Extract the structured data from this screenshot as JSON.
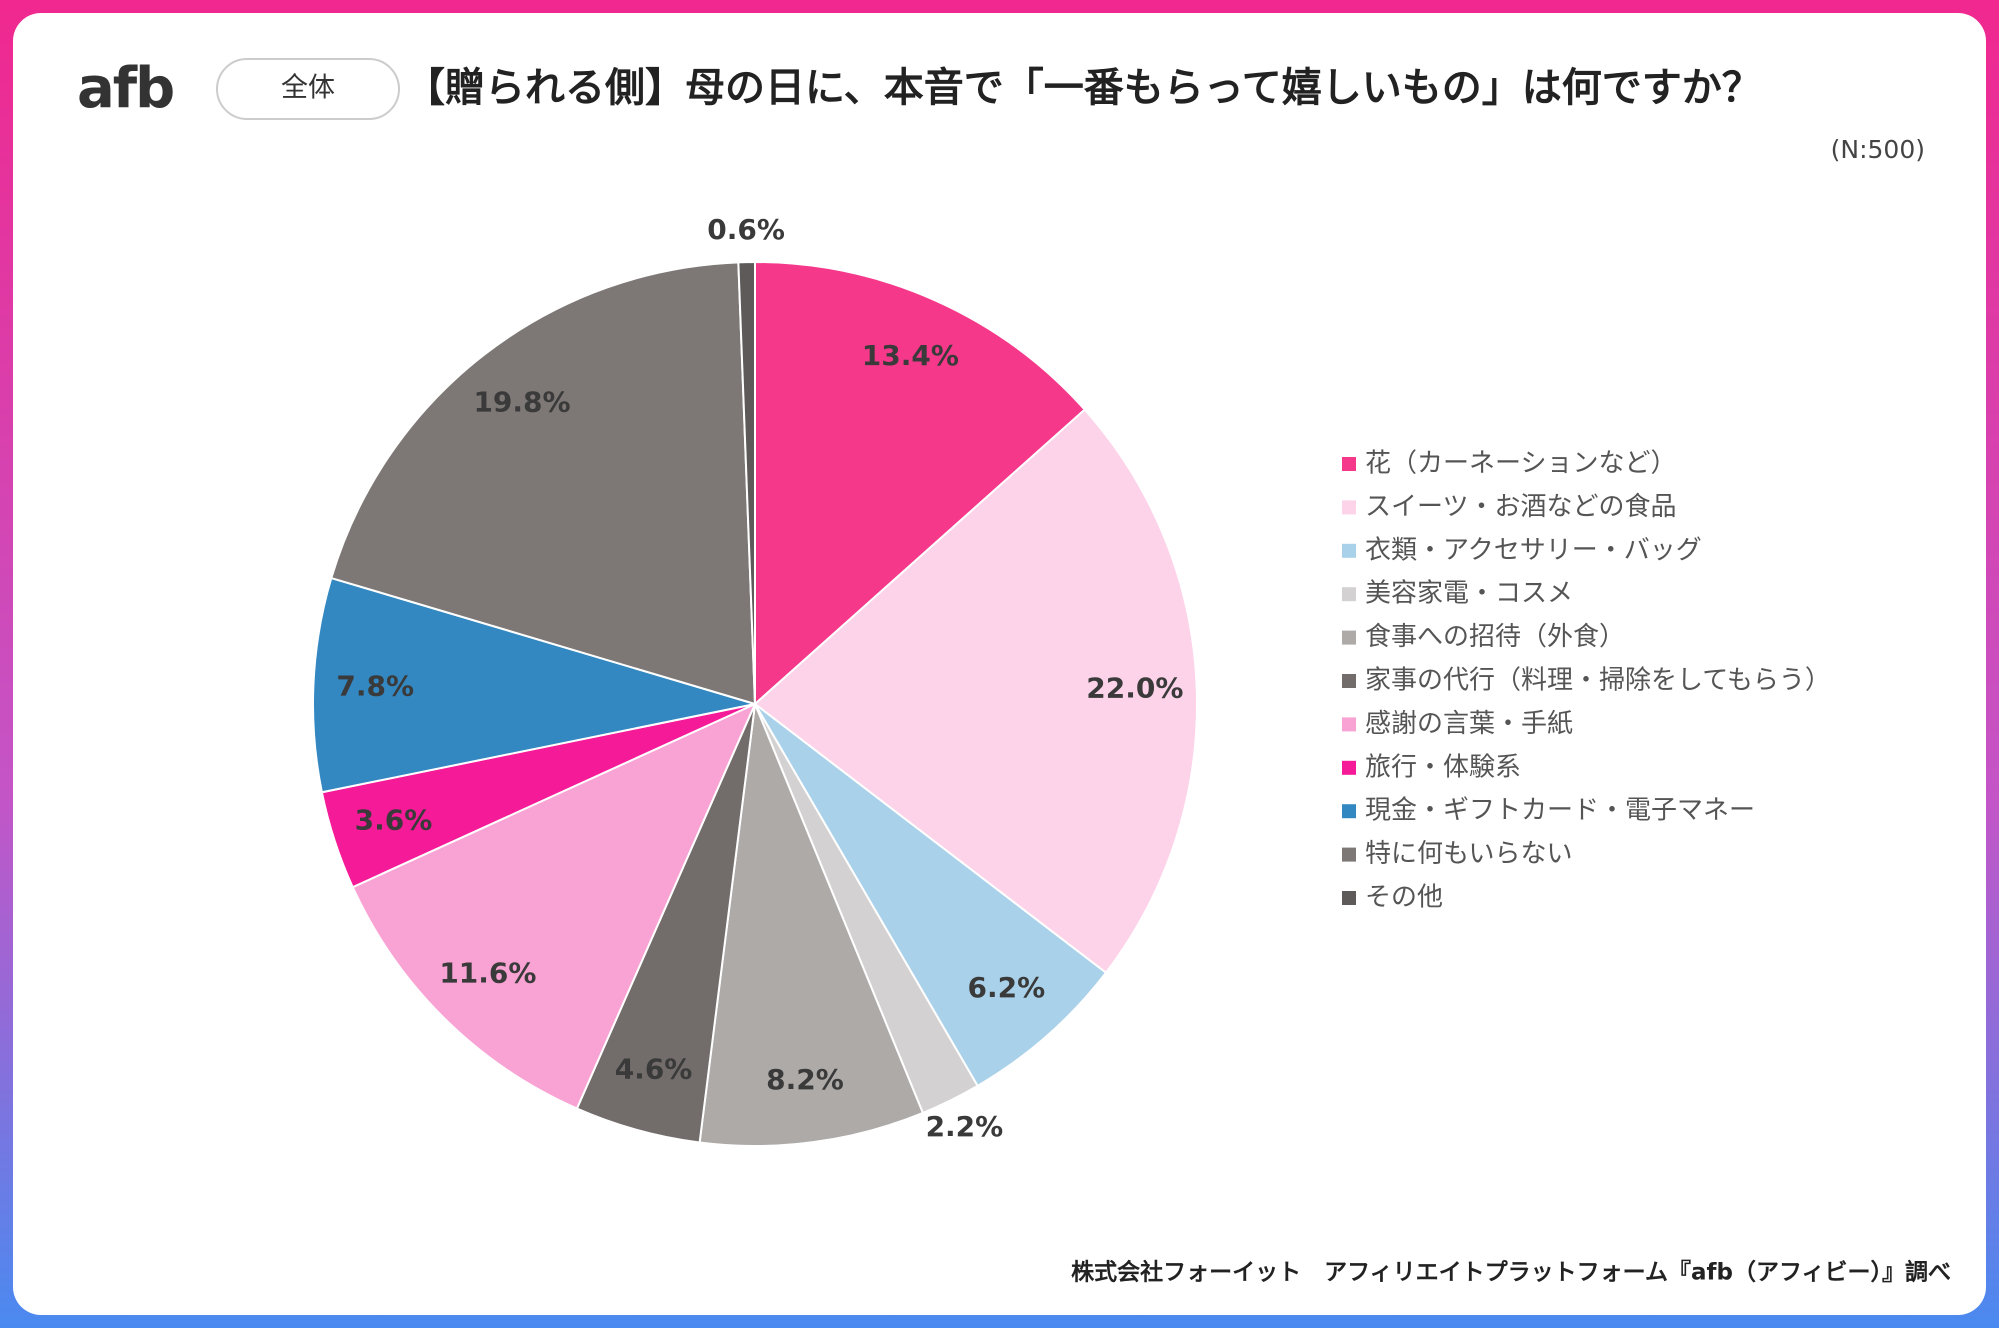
{
  "chart_data": {
    "type": "pie",
    "logo": "afb",
    "tag": "全体",
    "title": "【贈られる側】母の日に、本音で「一番もらって嬉しいもの」は何ですか？",
    "subtitle": "(N:500)",
    "source": "株式会社フォーイット　アフィリエイトプラットフォーム『afb（アフィビー）』調べ",
    "categories": [
      "花（カーネーションなど）",
      "スイーツ・お酒などの食品",
      "衣類・アクセサリー・バッグ",
      "美容家電・コスメ",
      "食事への招待（外食）",
      "家事の代行（料理・掃除をしてもらう）",
      "感謝の言葉・手紙",
      "旅行・体験系",
      "現金・ギフトカード・電子マネー",
      "特に何もいらない",
      "その他"
    ],
    "values": [
      13.4,
      22.0,
      6.2,
      2.2,
      8.2,
      4.6,
      11.6,
      3.6,
      7.8,
      19.8,
      0.6
    ],
    "value_labels": [
      "13.4%",
      "22.0%",
      "6.2%",
      "2.2%",
      "8.2%",
      "4.6%",
      "11.6%",
      "3.6%",
      "7.8%",
      "19.8%",
      "0.6%"
    ],
    "colors": [
      "#f5388a",
      "#fdd3ea",
      "#a9d1ea",
      "#d3d1d1",
      "#aeaaa8",
      "#726d6b",
      "#f9a2d4",
      "#f51a97",
      "#3388c2",
      "#7d7876",
      "#5d5a59"
    ]
  }
}
